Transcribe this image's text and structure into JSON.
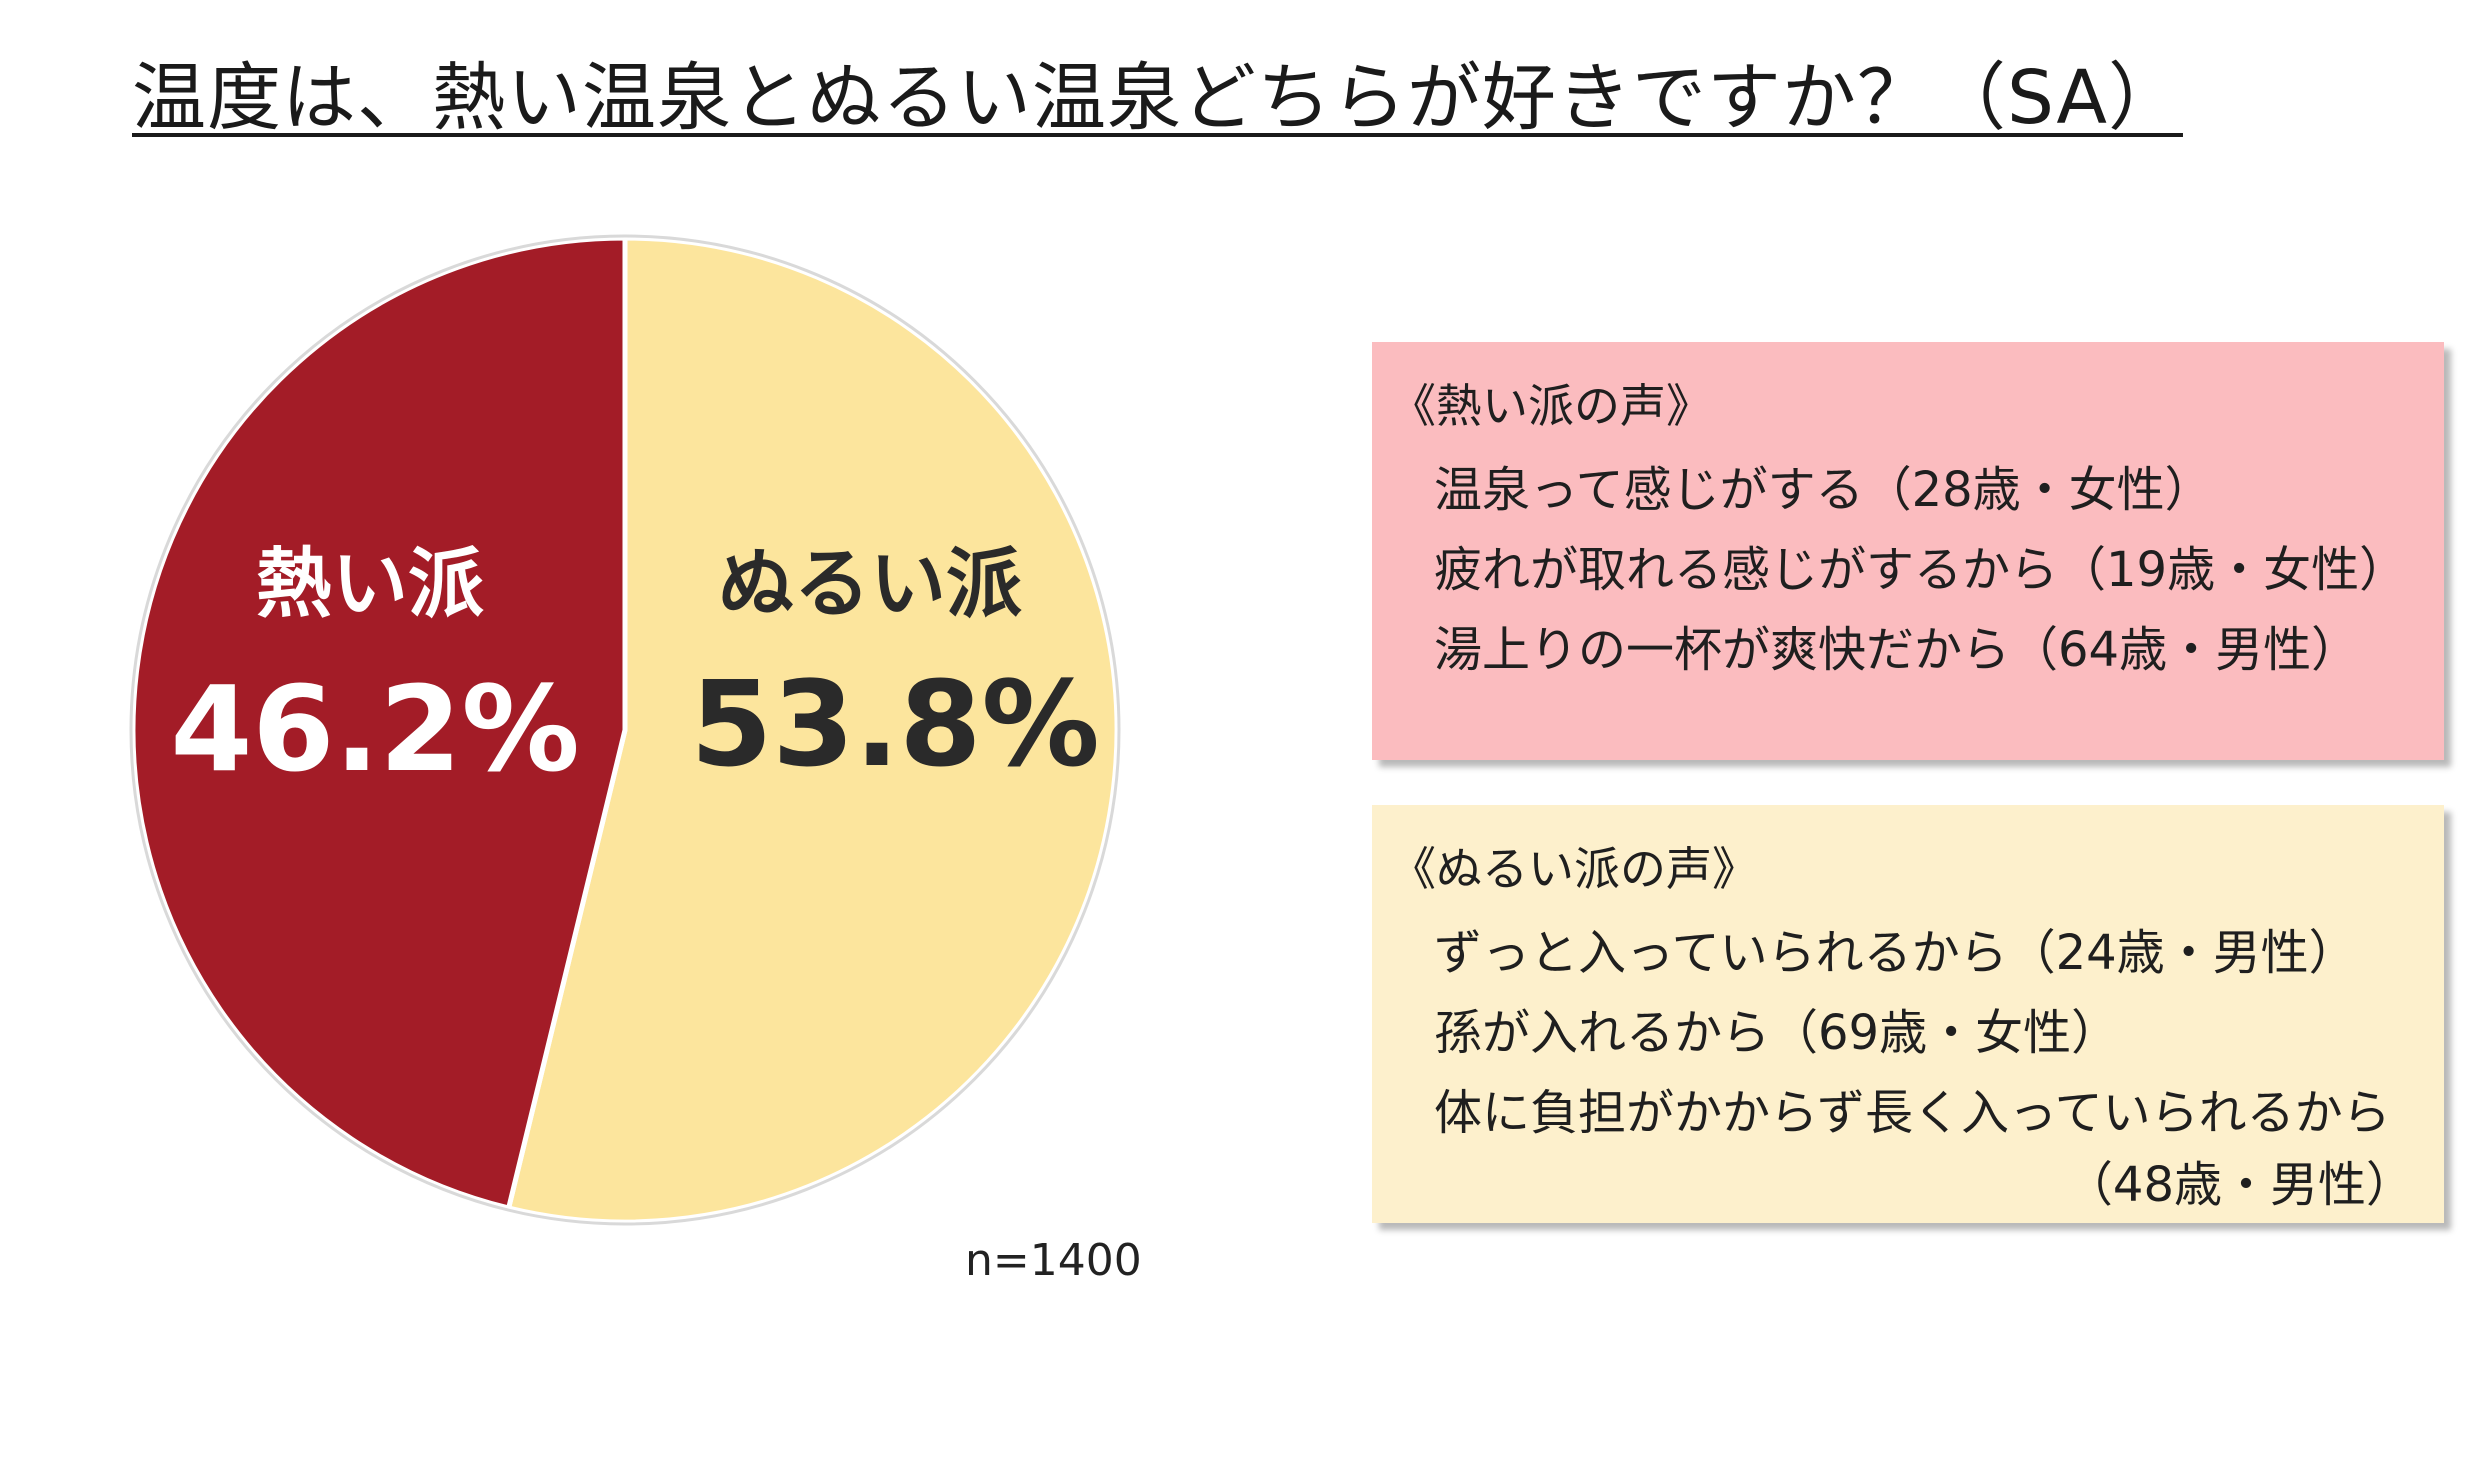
{
  "title": "温度は、熱い温泉とぬるい温泉どちらが好きですか？（SA）",
  "sample_size": "n=1400",
  "chart_data": {
    "type": "pie",
    "title": "温度は、熱い温泉とぬるい温泉どちらが好きですか？（SA）",
    "slices": [
      {
        "label": "熱い派",
        "value": 46.2,
        "value_label": "46.2%",
        "color": "#a31c27",
        "text_color": "#ffffff"
      },
      {
        "label": "ぬるい派",
        "value": 53.8,
        "value_label": "53.8%",
        "color": "#fce59d",
        "text_color": "#2a2a2a"
      }
    ],
    "start_angle_deg": 0,
    "direction": "counterclockwise-from-top-for-first-slice"
  },
  "voices": {
    "hot": {
      "title": "《熱い派の声》",
      "lines": [
        "温泉って感じがする（28歳・女性）",
        "疲れが取れる感じがするから（19歳・女性）",
        "湯上りの一杯が爽快だから（64歳・男性）"
      ],
      "background": "#fbbcbf"
    },
    "warm": {
      "title": "《ぬるい派の声》",
      "lines": [
        "ずっと入っていられるから（24歳・男性）",
        "孫が入れるから（69歳・女性）",
        "体に負担がかからず長く入っていられるから"
      ],
      "trailing_line": "（48歳・男性）",
      "background": "#fdf0cc"
    }
  }
}
